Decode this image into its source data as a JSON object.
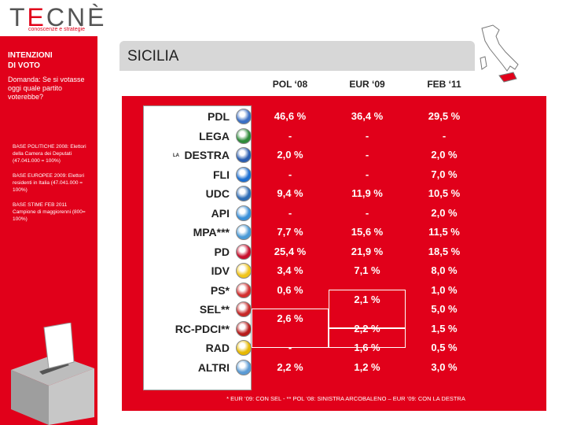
{
  "logo": {
    "main": "TECNÈ",
    "sub": "conoscenze e strategie"
  },
  "sidebar": {
    "heading_line1": "INTENZIONI",
    "heading_line2": "DI VOTO",
    "question": "Domanda: Se si votasse oggi quale partito voterebbe?",
    "notes": [
      "BASE POLITICHE 2008: Elettori della Camera dei Deputati (47.041.000 = 100%)",
      "BASE EUROPEE 2009: Elettori residenti in Italia (47.041.000 = 100%)",
      "BASE STIME FEB 2011 Campione di maggiorenni (800= 100%)"
    ]
  },
  "title": "SICILIA",
  "footnote": "* EUR ‘09: CON SEL - ** POL ‘08: SINISTRA ARCOBALENO – EUR ‘09: CON LA DESTRA",
  "colors": {
    "accent": "#e1001a",
    "title_bg": "#d7d7d7"
  },
  "chart_data": {
    "type": "table",
    "columns": [
      "POL ‘08",
      "EUR ‘09",
      "FEB ‘11"
    ],
    "rows": [
      {
        "party": "PDL",
        "prefix": "",
        "icon": "pdl-logo-icon",
        "icon_color": "#3b6fc4",
        "values": [
          "46,6 %",
          "36,4 %",
          "29,5 %"
        ]
      },
      {
        "party": "LEGA",
        "prefix": "",
        "icon": "lega-logo-icon",
        "icon_color": "#2e8b3a",
        "values": [
          "-",
          "-",
          "-"
        ]
      },
      {
        "party": "DESTRA",
        "prefix": "LA",
        "icon": "destra-logo-icon",
        "icon_color": "#2a5db0",
        "values": [
          "2,0 %",
          "-",
          "2,0 %"
        ]
      },
      {
        "party": "FLI",
        "prefix": "",
        "icon": "fli-logo-icon",
        "icon_color": "#1d6fd1",
        "values": [
          "-",
          "-",
          "7,0 %"
        ]
      },
      {
        "party": "UDC",
        "prefix": "",
        "icon": "udc-logo-icon",
        "icon_color": "#2f6db5",
        "values": [
          "9,4 %",
          "11,9 %",
          "10,5 %"
        ]
      },
      {
        "party": "API",
        "prefix": "",
        "icon": "api-logo-icon",
        "icon_color": "#3a8fd8",
        "values": [
          "-",
          "-",
          "2,0 %"
        ]
      },
      {
        "party": "MPA***",
        "prefix": "",
        "icon": "mpa-logo-icon",
        "icon_color": "#4a9ad6",
        "values": [
          "7,7 %",
          "15,6 %",
          "11,5 %"
        ]
      },
      {
        "party": "PD",
        "prefix": "",
        "icon": "pd-logo-icon",
        "icon_color": "#c8102e",
        "values": [
          "25,4 %",
          "21,9 %",
          "18,5 %"
        ]
      },
      {
        "party": "IDV",
        "prefix": "",
        "icon": "idv-logo-icon",
        "icon_color": "#f0c419",
        "values": [
          "3,4 %",
          "7,1 %",
          "8,0 %"
        ]
      },
      {
        "party": "PS*",
        "prefix": "",
        "icon": "ps-logo-icon",
        "icon_color": "#d32f2f",
        "values": [
          "0,6 %",
          "",
          "1,0 %"
        ]
      },
      {
        "party": "SEL**",
        "prefix": "",
        "icon": "sel-logo-icon",
        "icon_color": "#c62828",
        "values": [
          "",
          "",
          "5,0 %"
        ]
      },
      {
        "party": "RC-PDCI**",
        "prefix": "",
        "icon": "rc-pdci-logo-icon",
        "icon_color": "#b71c1c",
        "values": [
          "",
          "2,2 %",
          "1,5 %"
        ]
      },
      {
        "party": "RAD",
        "prefix": "",
        "icon": "rad-logo-icon",
        "icon_color": "#e6b800",
        "values": [
          "-",
          "1,6 %",
          "0,5 %"
        ]
      },
      {
        "party": "ALTRI",
        "prefix": "",
        "icon": "altri-icon",
        "icon_color": "#5b9bd5",
        "values": [
          "2,2 %",
          "1,2 %",
          "3,0 %"
        ]
      }
    ],
    "merged": [
      {
        "value": "2,1 %",
        "column": 1,
        "rows": [
          "PS*",
          "SEL**"
        ]
      },
      {
        "value": "2,6 %",
        "column": 0,
        "rows": [
          "SEL**",
          "RC-PDCI**"
        ]
      }
    ]
  }
}
